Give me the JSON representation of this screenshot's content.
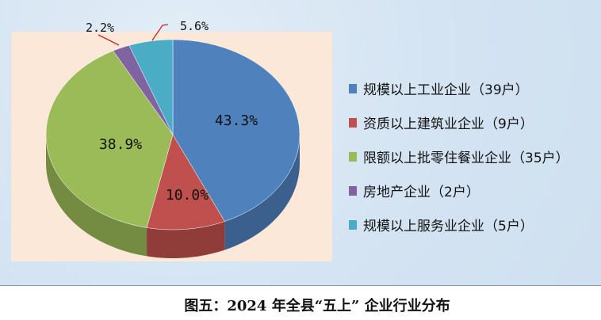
{
  "chart_data": {
    "type": "pie",
    "title": "",
    "slices": [
      {
        "label": "规模以上工业企业（39户）",
        "value": 43.3,
        "data_label": "43.3%",
        "color": "#4f81bd"
      },
      {
        "label": "资质以上建筑业企业（9户）",
        "value": 10.0,
        "data_label": "10.0%",
        "color": "#c0504d"
      },
      {
        "label": "限额以上批零住餐业企业（35户）",
        "value": 38.9,
        "data_label": "38.9%",
        "color": "#9bbb59"
      },
      {
        "label": "房地产企业（2户）",
        "value": 2.2,
        "data_label": "2.2%",
        "color": "#8064a2"
      },
      {
        "label": "规模以上服务业企业（5户）",
        "value": 5.6,
        "data_label": "5.6%",
        "color": "#4bacc6"
      }
    ],
    "legend_placement": "right",
    "style": "3d"
  },
  "caption": "图五：2024 年全县“五上” 企业行业分布"
}
